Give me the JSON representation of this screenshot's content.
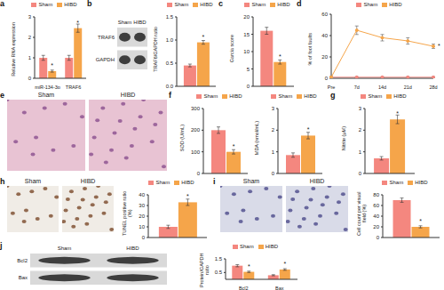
{
  "chart_data": [
    {
      "panel": "a",
      "type": "bar",
      "y_label": "Relative RNA expression",
      "categories": [
        "miR-134-3p",
        "TRAF6"
      ],
      "ylim": [
        0,
        3
      ],
      "yticks": [
        0,
        1,
        2,
        3
      ],
      "series": [
        {
          "name": "Sham",
          "color": "#f4877f",
          "values": [
            1.0,
            1.0
          ],
          "errors": [
            0.12,
            0.12
          ],
          "annotations": [
            null,
            null
          ]
        },
        {
          "name": "HIBD",
          "color": "#f5a54a",
          "values": [
            0.35,
            2.45
          ],
          "errors": [
            0.05,
            0.2
          ],
          "annotations": [
            "*",
            "*"
          ]
        }
      ]
    },
    {
      "type": "bar",
      "y_label": "TRAF6/GAPDH ratio",
      "categories": [
        null
      ],
      "ylim": [
        0,
        1.5
      ],
      "yticks": [
        {
          "value": 0,
          "label": "0.0"
        },
        0.5,
        {
          "value": 1,
          "label": "1.0"
        },
        1.5
      ],
      "series": [
        {
          "name": "Sham",
          "color": "#f4877f",
          "values": [
            0.45
          ],
          "errors": [
            0.03
          ],
          "annotations": [
            null
          ]
        },
        {
          "name": "HIBD",
          "color": "#f5a54a",
          "values": [
            0.95
          ],
          "errors": [
            0.04
          ],
          "annotations": [
            "*"
          ]
        }
      ]
    },
    {
      "panel": "c",
      "type": "bar",
      "y_label": "Garcia score",
      "categories": [
        null
      ],
      "ylim": [
        0,
        20
      ],
      "yticks": [
        0,
        5,
        10,
        15,
        20
      ],
      "series": [
        {
          "name": "Sham",
          "color": "#f4877f",
          "values": [
            16
          ],
          "errors": [
            1
          ],
          "annotations": [
            null
          ]
        },
        {
          "name": "HIBD",
          "color": "#f5a54a",
          "values": [
            7
          ],
          "errors": [
            0.6
          ],
          "annotations": [
            "*"
          ]
        }
      ]
    },
    {
      "panel": "d",
      "type": "line",
      "y_label": "% of foot faults",
      "categories": [
        "Pre",
        "7d",
        "14d",
        "21d",
        "28d"
      ],
      "ylim": [
        0,
        60
      ],
      "yticks": [
        0,
        20,
        40,
        60
      ],
      "series": [
        {
          "name": "Sham",
          "color": "#f4877f",
          "values": [
            1,
            1,
            1,
            1,
            1
          ],
          "errors": [
            0.5,
            0.5,
            0.5,
            0.5,
            0.5
          ],
          "annotations": [
            null,
            null,
            null,
            null,
            null
          ]
        },
        {
          "name": "HIBD",
          "color": "#f5a54a",
          "values": [
            1,
            45,
            38,
            35,
            30
          ],
          "errors": [
            0.5,
            4,
            3,
            3,
            2
          ],
          "annotations": [
            null,
            null,
            null,
            null,
            "*"
          ]
        }
      ]
    },
    {
      "panel": "f",
      "type": "bar",
      "y_label": "SOD (U/mL)",
      "categories": [
        null
      ],
      "ylim": [
        0,
        300
      ],
      "yticks": [
        0,
        100,
        200,
        300
      ],
      "series": [
        {
          "name": "Sham",
          "color": "#f4877f",
          "values": [
            200
          ],
          "errors": [
            15
          ],
          "annotations": [
            null
          ]
        },
        {
          "name": "HIBD",
          "color": "#f5a54a",
          "values": [
            100
          ],
          "errors": [
            10
          ],
          "annotations": [
            "*"
          ]
        }
      ]
    },
    {
      "type": "bar",
      "y_label": "MDA (nmol/mL)",
      "categories": [
        null
      ],
      "ylim": [
        0,
        3
      ],
      "yticks": [
        0,
        1,
        2,
        3
      ],
      "series": [
        {
          "name": "Sham",
          "color": "#f4877f",
          "values": [
            0.85
          ],
          "errors": [
            0.1
          ],
          "annotations": [
            null
          ]
        },
        {
          "name": "HIBD",
          "color": "#f5a54a",
          "values": [
            1.75
          ],
          "errors": [
            0.15
          ],
          "annotations": [
            "*"
          ]
        }
      ]
    },
    {
      "panel": "g",
      "type": "bar",
      "y_label": "Nitrite (μM)",
      "categories": [
        null
      ],
      "ylim": [
        0,
        3
      ],
      "yticks": [
        0,
        1,
        2,
        3
      ],
      "series": [
        {
          "name": "Sham",
          "color": "#f4877f",
          "values": [
            0.7
          ],
          "errors": [
            0.08
          ],
          "annotations": [
            null
          ]
        },
        {
          "name": "HIBD",
          "color": "#f5a54a",
          "values": [
            2.5
          ],
          "errors": [
            0.2
          ],
          "annotations": [
            "*"
          ]
        }
      ]
    },
    {
      "type": "bar",
      "y_label": "TUNEL positive ratio (%)",
      "categories": [
        null
      ],
      "ylim": [
        0,
        40
      ],
      "yticks": [
        0,
        10,
        20,
        30,
        40
      ],
      "series": [
        {
          "name": "Sham",
          "color": "#f4877f",
          "values": [
            10
          ],
          "errors": [
            1.5
          ],
          "annotations": [
            null
          ]
        },
        {
          "name": "HIBD",
          "color": "#f5a54a",
          "values": [
            33
          ],
          "errors": [
            3
          ],
          "annotations": [
            "*"
          ]
        }
      ]
    },
    {
      "type": "bar",
      "y_label": "Cell count per visual field (%)",
      "categories": [
        null
      ],
      "ylim": [
        0,
        80
      ],
      "yticks": [
        0,
        20,
        40,
        60,
        80
      ],
      "series": [
        {
          "name": "Sham",
          "color": "#f4877f",
          "values": [
            70
          ],
          "errors": [
            4
          ],
          "annotations": [
            null
          ]
        },
        {
          "name": "HIBD",
          "color": "#f5a54a",
          "values": [
            20
          ],
          "errors": [
            2
          ],
          "annotations": [
            "*"
          ]
        }
      ]
    },
    {
      "type": "bar",
      "y_label": "Protein/GAPDH ratio",
      "categories": [
        "Bcl2",
        "Bax"
      ],
      "ylim": [
        0,
        1.5
      ],
      "yticks": [
        {
          "value": 0,
          "label": "0.0"
        },
        0.5,
        {
          "value": 1,
          "label": "1.0"
        },
        1.5
      ],
      "series": [
        {
          "name": "Sham",
          "color": "#f4877f",
          "values": [
            1.0,
            0.3
          ],
          "errors": [
            0.08,
            0.04
          ],
          "annotations": [
            null,
            null
          ]
        },
        {
          "name": "HIBD",
          "color": "#f5a54a",
          "values": [
            0.55,
            0.72
          ],
          "errors": [
            0.05,
            0.06
          ],
          "annotations": [
            "*",
            "*"
          ]
        }
      ]
    }
  ],
  "blots": [
    {
      "panel": "b",
      "lanes": [
        "Sham",
        "HIBD"
      ],
      "bands": [
        "TRAF6",
        "GAPDH"
      ]
    },
    {
      "panel": "j",
      "lanes": [
        "Sham",
        "HIBD"
      ],
      "bands": [
        "Bcl2",
        "Bax"
      ]
    }
  ],
  "images": [
    {
      "panel": "e",
      "labels": [
        "Sham",
        "HIBD"
      ]
    },
    {
      "panel": "h",
      "labels": [
        "Sham",
        "HIBD"
      ]
    },
    {
      "panel": "i",
      "labels": [
        "Sham",
        "HIBD"
      ]
    }
  ]
}
